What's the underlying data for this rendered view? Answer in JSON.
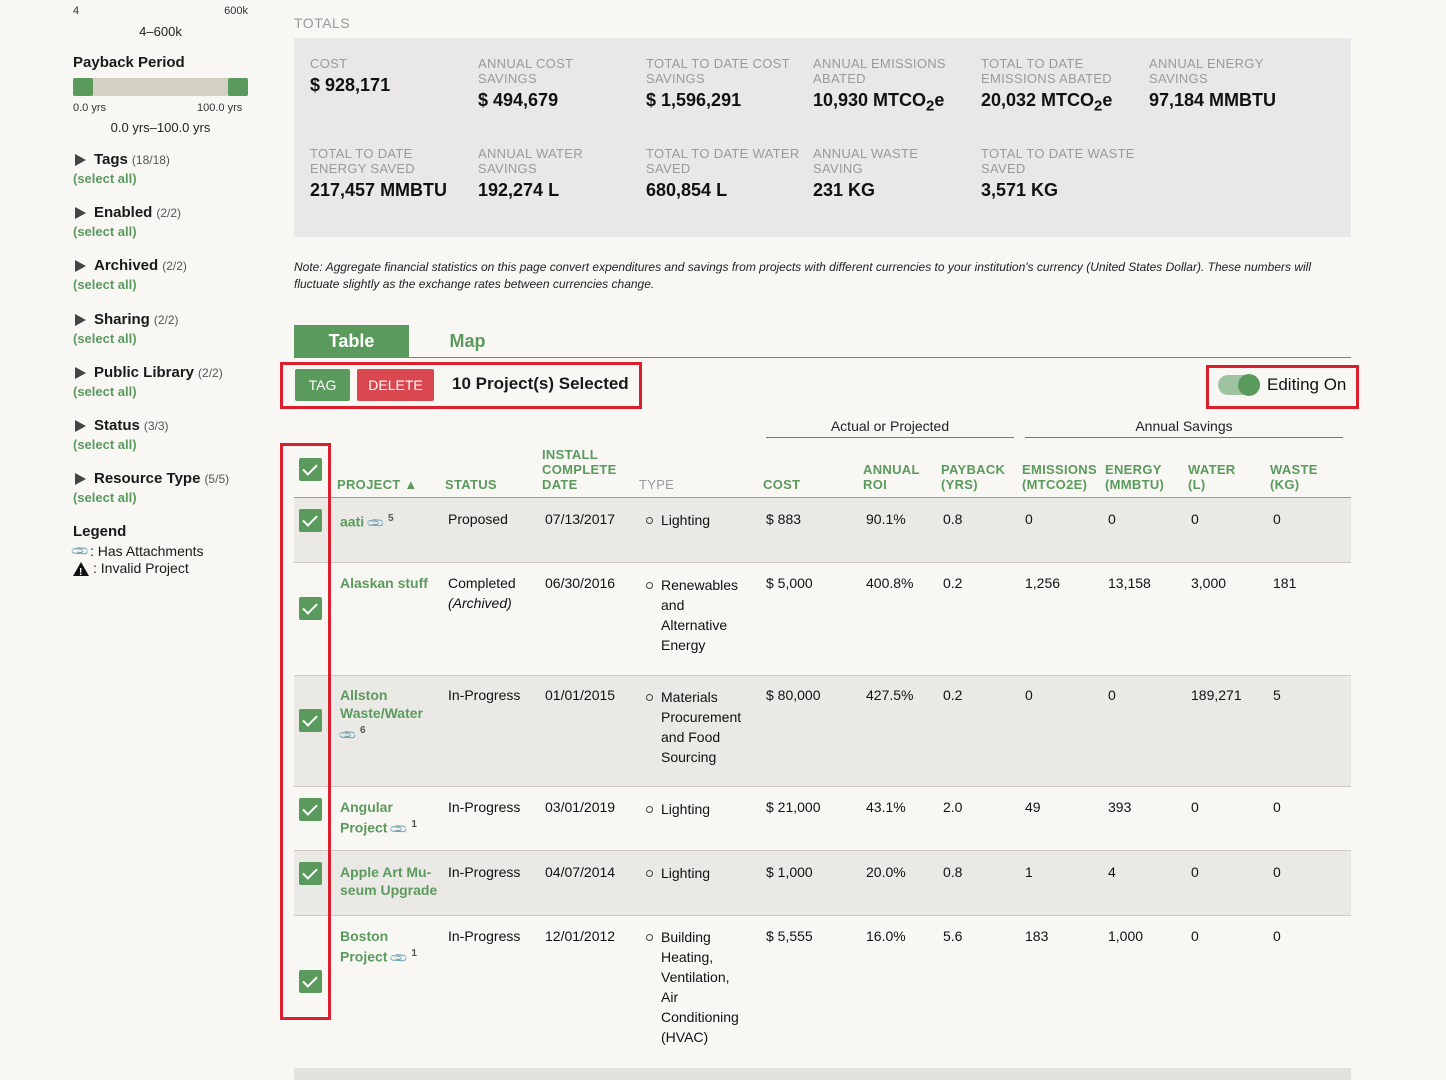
{
  "sidebar": {
    "range_top": {
      "min": "4",
      "max": "600k",
      "summary": "4–600k"
    },
    "payback": {
      "title": "Payback Period",
      "min": "0.0 yrs",
      "max": "100.0 yrs",
      "summary": "0.0 yrs–100.0 yrs",
      "range_fraction": [
        0.0,
        1.0
      ]
    },
    "filters": [
      {
        "name": "Tags",
        "count": "(18/18)",
        "select": "(select all)"
      },
      {
        "name": "Enabled",
        "count": "(2/2)",
        "select": "(select all)"
      },
      {
        "name": "Archived",
        "count": "(2/2)",
        "select": "(select all)"
      },
      {
        "name": "Sharing",
        "count": "(2/2)",
        "select": "(select all)"
      },
      {
        "name": "Public Library",
        "count": "(2/2)",
        "select": "(select all)"
      },
      {
        "name": "Status",
        "count": "(3/3)",
        "select": "(select all)"
      },
      {
        "name": "Resource Type",
        "count": "(5/5)",
        "select": "(select all)"
      }
    ],
    "legend": {
      "title": "Legend",
      "attachments": ": Has Attachments",
      "invalid": ": Invalid Project"
    }
  },
  "totals": {
    "label": "TOTALS",
    "stats": [
      {
        "label": "COST",
        "value": "$ 928,171"
      },
      {
        "label": "ANNUAL COST SAVINGS",
        "value": "$ 494,679"
      },
      {
        "label": "TOTAL TO DATE COST SAVINGS",
        "value": "$ 1,596,291"
      },
      {
        "label": "ANNUAL EMISSIONS ABATED",
        "value": "10,930 MTCO",
        "sub": "2",
        "suffix": "e"
      },
      {
        "label": "TOTAL TO DATE EMISSIONS ABATED",
        "value": "20,032 MTCO",
        "sub": "2",
        "suffix": "e"
      },
      {
        "label": "ANNUAL ENERGY SAVINGS",
        "value": "97,184 MMBTU"
      },
      {
        "label": "TOTAL TO DATE ENERGY SAVED",
        "value": "217,457 MMBTU"
      },
      {
        "label": "ANNUAL WATER SAVINGS",
        "value": "192,274 L"
      },
      {
        "label": "TOTAL TO DATE WATER SAVED",
        "value": "680,854 L"
      },
      {
        "label": "ANNUAL WASTE SAVING",
        "value": "231 KG"
      },
      {
        "label": "TOTAL TO DATE WASTE SAVED",
        "value": "3,571 KG"
      }
    ],
    "note": "Note: Aggregate financial statistics on this page convert expenditures and savings from projects with different currencies to your institution's currency (United States Dollar). These numbers will fluctuate slightly as the exchange rates between currencies change."
  },
  "tabs": {
    "table": "Table",
    "map": "Map"
  },
  "toolbar": {
    "tag": "TAG",
    "delete": "DELETE",
    "selected": "10 Project(s) Selected",
    "editing": "Editing On"
  },
  "table": {
    "groups": {
      "actual": "Actual or Projected",
      "savings": "Annual Savings"
    },
    "headers": {
      "project": "PROJECT ▲",
      "status": "STATUS",
      "install_1": "INSTALL",
      "install_2": "COMPLETE",
      "install_3": "DATE",
      "type": "TYPE",
      "cost": "COST",
      "roi_1": "ANNUAL",
      "roi_2": "ROI",
      "payback_1": "PAYBACK",
      "payback_2": "(YRS)",
      "emissions_1": "EMISSIONS",
      "emissions_2": "(MTCO2E)",
      "energy_1": "ENERGY",
      "energy_2": "(MMBTU)",
      "water_1": "WATER",
      "water_2": "(L)",
      "waste_1": "WASTE",
      "waste_2": "(KG)"
    },
    "rows": [
      {
        "project": [
          "aati"
        ],
        "attach": "5",
        "status": "Proposed",
        "archived": "",
        "date": "07/13/2017",
        "type": [
          "Lighting"
        ],
        "cost": "$ 883",
        "roi": "90.1%",
        "payback": "0.8",
        "emissions": "0",
        "energy": "0",
        "water": "0",
        "waste": "0"
      },
      {
        "project": [
          "Alaskan stuff"
        ],
        "attach": "",
        "status": "Completed",
        "archived": "(Archived)",
        "date": "06/30/2016",
        "type": [
          "Renewables",
          "and",
          "Alternative",
          "Energy"
        ],
        "cost": "$ 5,000",
        "roi": "400.8%",
        "payback": "0.2",
        "emissions": "1,256",
        "energy": "13,158",
        "water": "3,000",
        "waste": "181"
      },
      {
        "project": [
          "Allston",
          "Waste/Water"
        ],
        "attach": "6",
        "status": "In-Progress",
        "archived": "",
        "date": "01/01/2015",
        "type": [
          "Materials",
          "Procurement",
          "and Food",
          "Sourcing"
        ],
        "cost": "$ 80,000",
        "roi": "427.5%",
        "payback": "0.2",
        "emissions": "0",
        "energy": "0",
        "water": "189,271",
        "waste": "5"
      },
      {
        "project": [
          "Angular",
          "Project"
        ],
        "attach": "1",
        "status": "In-Progress",
        "archived": "",
        "date": "03/01/2019",
        "type": [
          "Lighting"
        ],
        "cost": "$ 21,000",
        "roi": "43.1%",
        "payback": "2.0",
        "emissions": "49",
        "energy": "393",
        "water": "0",
        "waste": "0"
      },
      {
        "project": [
          "Apple Art Mu-",
          "seum Upgrade"
        ],
        "attach": "",
        "status": "In-Progress",
        "archived": "",
        "date": "04/07/2014",
        "type": [
          "Lighting"
        ],
        "cost": "$ 1,000",
        "roi": "20.0%",
        "payback": "0.8",
        "emissions": "1",
        "energy": "4",
        "water": "0",
        "waste": "0"
      },
      {
        "project": [
          "Boston",
          "Project"
        ],
        "attach": "1",
        "status": "In-Progress",
        "archived": "",
        "date": "12/01/2012",
        "type": [
          "Building",
          "Heating,",
          "Ventilation,",
          "Air",
          "Conditioning",
          "(HVAC)"
        ],
        "cost": "$ 5,555",
        "roi": "16.0%",
        "payback": "5.6",
        "emissions": "183",
        "energy": "1,000",
        "water": "0",
        "waste": "0"
      }
    ]
  }
}
